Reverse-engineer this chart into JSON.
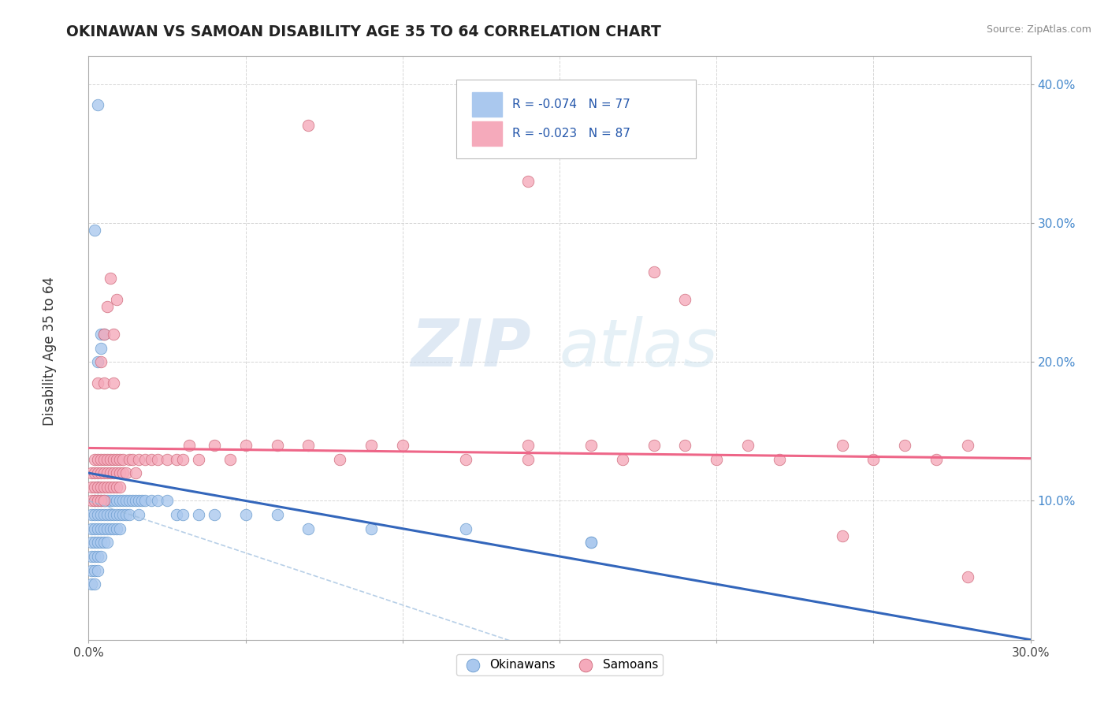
{
  "title": "OKINAWAN VS SAMOAN DISABILITY AGE 35 TO 64 CORRELATION CHART",
  "source": "Source: ZipAtlas.com",
  "ylabel": "Disability Age 35 to 64",
  "xlim": [
    0.0,
    0.3
  ],
  "ylim": [
    0.0,
    0.42
  ],
  "xtick_vals": [
    0.0,
    0.05,
    0.1,
    0.15,
    0.2,
    0.25,
    0.3
  ],
  "ytick_vals": [
    0.0,
    0.1,
    0.2,
    0.3,
    0.4
  ],
  "okinawan_color": "#aac8ee",
  "okinawan_edge": "#6699cc",
  "samoan_color": "#f5aabb",
  "samoan_edge": "#cc6677",
  "trend_okinawan_color": "#3366bb",
  "trend_samoan_color": "#ee6688",
  "watermark_zip": "ZIP",
  "watermark_atlas": "atlas",
  "legend_items": [
    {
      "color": "#aac8ee",
      "edge": "#6699cc",
      "r": "R = -0.074",
      "n": "N = 77"
    },
    {
      "color": "#f5aabb",
      "edge": "#cc6677",
      "r": "R = -0.023",
      "n": "N = 87"
    }
  ],
  "ok_x": [
    0.001,
    0.001,
    0.001,
    0.001,
    0.001,
    0.001,
    0.002,
    0.002,
    0.002,
    0.002,
    0.002,
    0.002,
    0.002,
    0.003,
    0.003,
    0.003,
    0.003,
    0.003,
    0.003,
    0.003,
    0.004,
    0.004,
    0.004,
    0.004,
    0.004,
    0.005,
    0.005,
    0.005,
    0.005,
    0.006,
    0.006,
    0.006,
    0.006,
    0.007,
    0.007,
    0.007,
    0.008,
    0.008,
    0.008,
    0.009,
    0.009,
    0.009,
    0.01,
    0.01,
    0.01,
    0.011,
    0.011,
    0.012,
    0.012,
    0.013,
    0.013,
    0.014,
    0.015,
    0.016,
    0.016,
    0.017,
    0.018,
    0.02,
    0.022,
    0.025,
    0.028,
    0.03,
    0.035,
    0.04,
    0.05,
    0.06,
    0.07,
    0.09,
    0.12,
    0.16,
    0.002,
    0.003,
    0.003,
    0.004,
    0.004,
    0.005,
    0.16
  ],
  "ok_y": [
    0.04,
    0.05,
    0.06,
    0.07,
    0.08,
    0.09,
    0.04,
    0.05,
    0.06,
    0.07,
    0.08,
    0.09,
    0.1,
    0.05,
    0.06,
    0.07,
    0.08,
    0.09,
    0.1,
    0.11,
    0.06,
    0.07,
    0.08,
    0.09,
    0.1,
    0.07,
    0.08,
    0.09,
    0.1,
    0.07,
    0.08,
    0.09,
    0.1,
    0.08,
    0.09,
    0.1,
    0.08,
    0.09,
    0.1,
    0.08,
    0.09,
    0.1,
    0.08,
    0.09,
    0.1,
    0.09,
    0.1,
    0.09,
    0.1,
    0.09,
    0.1,
    0.1,
    0.1,
    0.09,
    0.1,
    0.1,
    0.1,
    0.1,
    0.1,
    0.1,
    0.09,
    0.09,
    0.09,
    0.09,
    0.09,
    0.09,
    0.08,
    0.08,
    0.08,
    0.07,
    0.295,
    0.385,
    0.2,
    0.21,
    0.22,
    0.22,
    0.07
  ],
  "sam_x": [
    0.001,
    0.001,
    0.001,
    0.002,
    0.002,
    0.002,
    0.002,
    0.003,
    0.003,
    0.003,
    0.003,
    0.004,
    0.004,
    0.004,
    0.004,
    0.005,
    0.005,
    0.005,
    0.005,
    0.006,
    0.006,
    0.006,
    0.007,
    0.007,
    0.007,
    0.008,
    0.008,
    0.008,
    0.009,
    0.009,
    0.009,
    0.01,
    0.01,
    0.01,
    0.011,
    0.011,
    0.012,
    0.013,
    0.014,
    0.015,
    0.016,
    0.018,
    0.02,
    0.022,
    0.025,
    0.028,
    0.03,
    0.032,
    0.035,
    0.04,
    0.045,
    0.05,
    0.06,
    0.07,
    0.08,
    0.09,
    0.1,
    0.12,
    0.14,
    0.14,
    0.16,
    0.17,
    0.18,
    0.19,
    0.2,
    0.21,
    0.22,
    0.24,
    0.25,
    0.26,
    0.27,
    0.28,
    0.003,
    0.004,
    0.005,
    0.005,
    0.006,
    0.007,
    0.008,
    0.008,
    0.009,
    0.07,
    0.14,
    0.18,
    0.19,
    0.24,
    0.28
  ],
  "sam_y": [
    0.1,
    0.11,
    0.12,
    0.1,
    0.11,
    0.12,
    0.13,
    0.1,
    0.11,
    0.12,
    0.13,
    0.1,
    0.11,
    0.12,
    0.13,
    0.1,
    0.11,
    0.12,
    0.13,
    0.11,
    0.12,
    0.13,
    0.11,
    0.12,
    0.13,
    0.11,
    0.12,
    0.13,
    0.11,
    0.12,
    0.13,
    0.11,
    0.12,
    0.13,
    0.12,
    0.13,
    0.12,
    0.13,
    0.13,
    0.12,
    0.13,
    0.13,
    0.13,
    0.13,
    0.13,
    0.13,
    0.13,
    0.14,
    0.13,
    0.14,
    0.13,
    0.14,
    0.14,
    0.14,
    0.13,
    0.14,
    0.14,
    0.13,
    0.14,
    0.13,
    0.14,
    0.13,
    0.14,
    0.14,
    0.13,
    0.14,
    0.13,
    0.14,
    0.13,
    0.14,
    0.13,
    0.14,
    0.185,
    0.2,
    0.185,
    0.22,
    0.24,
    0.26,
    0.22,
    0.185,
    0.245,
    0.37,
    0.33,
    0.265,
    0.245,
    0.075,
    0.045
  ]
}
